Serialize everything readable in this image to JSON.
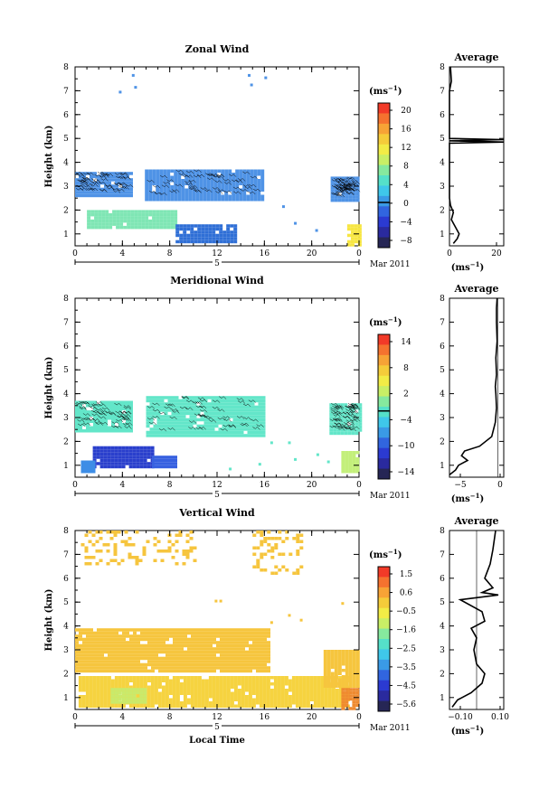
{
  "figure": {
    "x_axis_title": "Local Time",
    "date_label": "Mar 2011",
    "day_label": "5",
    "colorbar_unit": "(ms",
    "unit_exponent": "−1",
    "x_ticks": [
      "0",
      "4",
      "8",
      "12",
      "16",
      "20",
      "0"
    ],
    "y_ticks": [
      "1",
      "2",
      "3",
      "4",
      "5",
      "6",
      "7",
      "8"
    ],
    "y_label": "Height (km)",
    "average_title": "Average",
    "average_unit": "(ms"
  },
  "chart_data": [
    {
      "type": "heatmap",
      "title": "Zonal Wind",
      "xlabel": "Local Time",
      "ylabel": "Height (km)",
      "xlim": [
        0,
        24
      ],
      "ylim": [
        0.5,
        8
      ],
      "colorbar": {
        "ticks": [
          "20",
          "16",
          "12",
          "8",
          "4",
          "0",
          "−4",
          "−8"
        ],
        "range": [
          -10,
          22
        ],
        "zero_line": 0
      },
      "regions": [
        {
          "x0": 0,
          "x1": 4.8,
          "y0": 2.6,
          "y1": 3.6,
          "value": 3,
          "color": "#4f93e6",
          "contour": true
        },
        {
          "x0": 5.9,
          "x1": 15.8,
          "y0": 2.5,
          "y1": 3.7,
          "value": 3,
          "color": "#4f93e6",
          "contour": true
        },
        {
          "x0": 21.6,
          "x1": 24,
          "y0": 2.4,
          "y1": 3.4,
          "value": 3,
          "color": "#4f93e6",
          "contour": true
        },
        {
          "x0": 1,
          "x1": 8.5,
          "y0": 1.3,
          "y1": 2.0,
          "value": 9,
          "color": "#7fe6b4"
        },
        {
          "x0": 8.5,
          "x1": 13.5,
          "y0": 0.7,
          "y1": 1.4,
          "value": 1,
          "color": "#2f6fd6"
        },
        {
          "x0": 23,
          "x1": 24,
          "y0": 0.6,
          "y1": 1.4,
          "value": 18,
          "color": "#f7e642"
        }
      ],
      "scatter_cells": [
        [
          4.8,
          7.7
        ],
        [
          5.0,
          7.2
        ],
        [
          3.7,
          7.0
        ],
        [
          14.6,
          7.7
        ],
        [
          16,
          7.6
        ],
        [
          14.8,
          7.3
        ],
        [
          17.5,
          2.2
        ],
        [
          18.5,
          1.5
        ],
        [
          20.3,
          1.2
        ]
      ],
      "average_profile": {
        "xlim": [
          0,
          28
        ],
        "x_ticks": [
          "0",
          "20"
        ],
        "points": [
          [
            2,
            0.6
          ],
          [
            4,
            0.8
          ],
          [
            5,
            1.0
          ],
          [
            3,
            1.3
          ],
          [
            1,
            1.6
          ],
          [
            2,
            1.9
          ],
          [
            0.5,
            2.2
          ],
          [
            0,
            2.5
          ],
          [
            0,
            3
          ],
          [
            0,
            4
          ],
          [
            0,
            4.8
          ],
          [
            28,
            4.85
          ],
          [
            0,
            4.9
          ],
          [
            28,
            4.95
          ],
          [
            0,
            5.0
          ],
          [
            0,
            6
          ],
          [
            0,
            7
          ],
          [
            1,
            7.4
          ],
          [
            0.5,
            8
          ]
        ]
      }
    },
    {
      "type": "heatmap",
      "title": "Meridional Wind",
      "xlabel": "Local Time",
      "ylabel": "Height (km)",
      "xlim": [
        0,
        24
      ],
      "ylim": [
        0.5,
        8
      ],
      "colorbar": {
        "ticks": [
          "14",
          "8",
          "2",
          "−4",
          "−10",
          "−14"
        ],
        "range": [
          -16,
          18
        ],
        "zero_line": 0
      },
      "regions": [
        {
          "x0": 0,
          "x1": 4.8,
          "y0": 2.4,
          "y1": 3.7,
          "value": 0,
          "color": "#63e6c9",
          "contour": true
        },
        {
          "x0": 6,
          "x1": 16,
          "y0": 2.3,
          "y1": 3.9,
          "value": 0,
          "color": "#63e6c9",
          "contour": true
        },
        {
          "x0": 21.5,
          "x1": 24,
          "y0": 2.3,
          "y1": 3.6,
          "value": 0,
          "color": "#63e6c9",
          "contour": true
        },
        {
          "x0": 1.5,
          "x1": 6.5,
          "y0": 0.9,
          "y1": 1.8,
          "value": -12,
          "color": "#2a3fcc"
        },
        {
          "x0": 6.5,
          "x1": 8.5,
          "y0": 0.9,
          "y1": 1.4,
          "value": -10,
          "color": "#3660e0"
        },
        {
          "x0": 0.5,
          "x1": 1.5,
          "y0": 0.8,
          "y1": 1.2,
          "value": -7,
          "color": "#3d8de6"
        },
        {
          "x0": 22.5,
          "x1": 24,
          "y0": 0.8,
          "y1": 1.6,
          "value": 4,
          "color": "#c3ef7a"
        }
      ],
      "scatter_cells": [
        [
          16.5,
          2.0
        ],
        [
          18,
          2.0
        ],
        [
          18.5,
          1.3
        ],
        [
          20.4,
          1.5
        ],
        [
          21.3,
          1.2
        ],
        [
          13,
          0.9
        ],
        [
          15.5,
          1.1
        ]
      ],
      "average_profile": {
        "xlim": [
          -8,
          1
        ],
        "x_ticks": [
          "−5",
          "0"
        ],
        "points": [
          [
            -8,
            0.6
          ],
          [
            -7,
            0.8
          ],
          [
            -6.5,
            1.0
          ],
          [
            -5,
            1.2
          ],
          [
            -6,
            1.4
          ],
          [
            -5.5,
            1.6
          ],
          [
            -3,
            1.8
          ],
          [
            -1,
            2.2
          ],
          [
            -0.4,
            2.8
          ],
          [
            -0.2,
            3.4
          ],
          [
            -0.3,
            4.0
          ],
          [
            -0.4,
            4.3
          ],
          [
            -0.2,
            4.8
          ],
          [
            -0.3,
            5.5
          ],
          [
            -0.1,
            6.2
          ],
          [
            -0.2,
            7.0
          ],
          [
            -0.2,
            7.6
          ],
          [
            -0.1,
            8.0
          ]
        ]
      }
    },
    {
      "type": "heatmap",
      "title": "Vertical Wind",
      "xlabel": "Local Time",
      "ylabel": "Height (km)",
      "xlim": [
        0,
        24
      ],
      "ylim": [
        0.5,
        8
      ],
      "colorbar": {
        "ticks": [
          "1.5",
          "0.6",
          "−0.5",
          "−1.6",
          "−2.5",
          "−3.5",
          "−4.5",
          "−5.6"
        ],
        "range": [
          -6,
          2
        ],
        "zero_line": null
      },
      "regions": [
        {
          "x0": 0,
          "x1": 16.5,
          "y0": 2.1,
          "y1": 3.9,
          "value": 0.1,
          "color": "#f6c53e"
        },
        {
          "x0": 0.3,
          "x1": 23,
          "y0": 0.6,
          "y1": 1.9,
          "value": 0.1,
          "color": "#f6d340"
        },
        {
          "x0": 21,
          "x1": 24,
          "y0": 1.5,
          "y1": 3.0,
          "value": 0.1,
          "color": "#f6c53e"
        },
        {
          "x0": 22.5,
          "x1": 24,
          "y0": 0.6,
          "y1": 1.4,
          "value": 0.6,
          "color": "#ef8a30"
        },
        {
          "x0": 3,
          "x1": 6,
          "y0": 0.8,
          "y1": 1.4,
          "value": -0.8,
          "color": "#c9ea6c"
        },
        {
          "x0": 0.5,
          "x1": 10,
          "y0": 6.6,
          "y1": 8.0,
          "value": 0.1,
          "color": "#f6c53e",
          "sparse": true
        },
        {
          "x0": 15,
          "x1": 19,
          "y0": 6.2,
          "y1": 8.0,
          "value": 0.1,
          "color": "#f6c53e",
          "sparse": true
        }
      ],
      "scatter_cells": [
        [
          11.8,
          5.1
        ],
        [
          12.2,
          5.1
        ],
        [
          16.5,
          4.2
        ],
        [
          18,
          4.5
        ],
        [
          19,
          4.3
        ],
        [
          22.5,
          5.0
        ]
      ],
      "average_profile": {
        "xlim": [
          -0.1,
          0.1
        ],
        "x_ticks": [
          "−0.10",
          "0.10"
        ],
        "points": [
          [
            -0.09,
            0.6
          ],
          [
            -0.07,
            0.9
          ],
          [
            -0.02,
            1.2
          ],
          [
            0.02,
            1.6
          ],
          [
            0.03,
            2.0
          ],
          [
            0.0,
            2.4
          ],
          [
            -0.01,
            3.0
          ],
          [
            0.0,
            3.5
          ],
          [
            -0.02,
            3.9
          ],
          [
            0.03,
            4.2
          ],
          [
            0.02,
            4.6
          ],
          [
            -0.06,
            5.1
          ],
          [
            0.08,
            5.3
          ],
          [
            0.02,
            5.4
          ],
          [
            0.06,
            5.6
          ],
          [
            0.03,
            6.0
          ],
          [
            0.05,
            6.6
          ],
          [
            0.06,
            7.2
          ],
          [
            0.07,
            8.0
          ]
        ]
      }
    }
  ]
}
